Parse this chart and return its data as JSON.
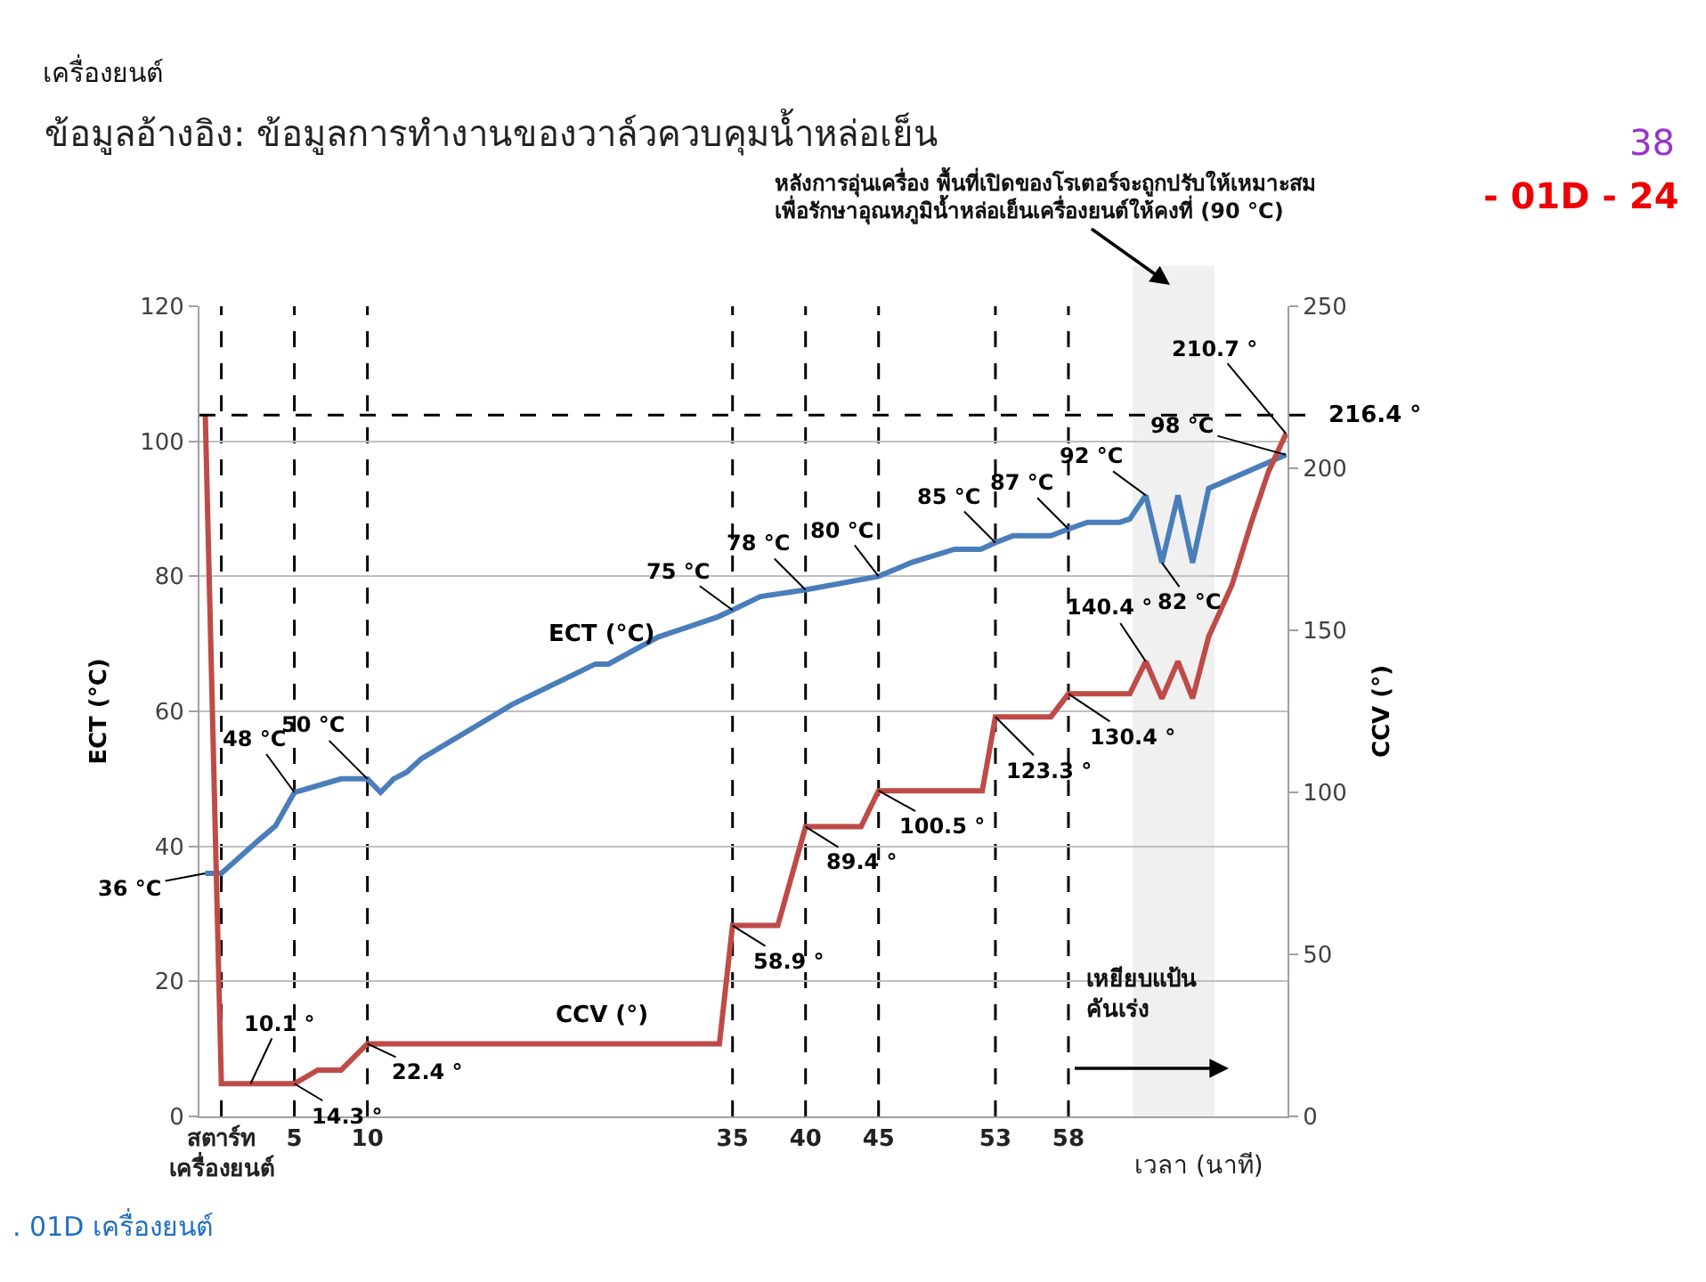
{
  "chart_data": {
    "type": "line",
    "title": "ข้อมูลอ้างอิง: ข้อมูลการทำงานของวาล์วควบคุมน้ำหล่อเย็น",
    "xlabel": "เวลา (นาที)",
    "ylabel": "ECT (°C)",
    "y2label": "CCV (°)",
    "series": [
      {
        "name": "ECT (°C)",
        "color": "#4a7ebb",
        "x": [
          -1.1,
          0,
          2.6,
          3.7,
          5,
          8.2,
          10,
          10.9,
          11.8,
          12.7,
          13.7,
          19.9,
          25.6,
          26.5,
          29.9,
          34,
          35,
          36.9,
          40,
          45,
          47.2,
          50.2,
          52,
          53,
          54.2,
          56.8,
          58,
          59.3,
          61.5,
          62.2,
          63.3,
          64.4,
          65.5,
          66.5,
          67.6,
          72.9
        ],
        "values": [
          36,
          36,
          41,
          43,
          48,
          50,
          50,
          48,
          50,
          51,
          53,
          61,
          67,
          67,
          71,
          74,
          75,
          77,
          78,
          80,
          82,
          84,
          84,
          85,
          86,
          86,
          87,
          88,
          88,
          88.5,
          92,
          82,
          92,
          82,
          93,
          98
        ]
      },
      {
        "name": "CCV (°)",
        "color": "#be4b48",
        "axis": "y2",
        "x": [
          -1.1,
          0,
          2,
          5,
          6.6,
          8.2,
          10,
          34.1,
          35,
          38.1,
          40,
          43.8,
          45,
          52.1,
          53,
          56.8,
          58,
          62.2,
          63.3,
          64.4,
          65.5,
          66.5,
          67.6,
          69.2,
          70.5,
          71.7,
          72.9
        ],
        "values": [
          216.4,
          10.1,
          10.1,
          10.1,
          14.3,
          14.3,
          22.4,
          22.4,
          58.9,
          58.9,
          89.4,
          89.4,
          100.5,
          100.5,
          123.3,
          123.3,
          130.4,
          130.4,
          140.4,
          129,
          140.4,
          129,
          148,
          164,
          183,
          199,
          210.7
        ]
      }
    ],
    "xlim": [
      -1.5,
      73
    ],
    "xticks": [
      {
        "value": 0,
        "label": "สตาร์ท\nเครื่องยนต์"
      },
      5,
      10,
      35,
      40,
      45,
      53,
      58
    ],
    "ylim": [
      0,
      120
    ],
    "yticks": [
      0,
      20,
      40,
      60,
      80,
      100,
      120
    ],
    "y2lim": [
      0,
      250
    ],
    "y2ticks": [
      0,
      50,
      100,
      150,
      200,
      250
    ],
    "grid": "y",
    "legend": false,
    "line_style": "solid",
    "ref_lines": [
      {
        "axis": "y2",
        "value": 216.4,
        "label": "216.4 °",
        "color": "#000000",
        "line_style": "dashed"
      },
      {
        "axis": "x",
        "value": 0,
        "color": "#000000",
        "line_style": "dashed"
      },
      {
        "axis": "x",
        "value": 5,
        "color": "#000000",
        "line_style": "dashed"
      },
      {
        "axis": "x",
        "value": 10,
        "color": "#000000",
        "line_style": "dashed"
      },
      {
        "axis": "x",
        "value": 35,
        "color": "#000000",
        "line_style": "dashed"
      },
      {
        "axis": "x",
        "value": 40,
        "color": "#000000",
        "line_style": "dashed"
      },
      {
        "axis": "x",
        "value": 45,
        "color": "#000000",
        "line_style": "dashed"
      },
      {
        "axis": "x",
        "value": 53,
        "color": "#000000",
        "line_style": "dashed"
      },
      {
        "axis": "x",
        "value": 58,
        "color": "#000000",
        "line_style": "dashed"
      }
    ],
    "bands": [
      {
        "axis": "x",
        "from": 62.4,
        "to": 68,
        "color": "#f0f0f0"
      }
    ],
    "annotations": [
      "เครื่องยนต์",
      "38",
      "- 01D - 24",
      "หลังการอุ่นเครื่อง พื้นที่เปิดของโรเตอร์จะถูกปรับให้เหมาะสม\nเพื่อรักษาอุณหภูมิน้ำหล่อเย็นเครื่องยนต์ให้คงที่ (90 °C)",
      "เหยียบแป้น\nคันเร่ง",
      ". 01D เครื่องยนต์",
      {
        "text": "36 °C",
        "x": -1.1,
        "y": 36
      },
      {
        "text": "48 °C",
        "x": 5,
        "y": 48
      },
      {
        "text": "50 °C",
        "x": 10,
        "y": 50
      },
      {
        "text": "75 °C",
        "x": 35,
        "y": 75
      },
      {
        "text": "78 °C",
        "x": 40,
        "y": 78
      },
      {
        "text": "80 °C",
        "x": 45,
        "y": 80
      },
      {
        "text": "85 °C",
        "x": 53,
        "y": 85
      },
      {
        "text": "87 °C",
        "x": 58,
        "y": 87
      },
      {
        "text": "92 °C",
        "x": 63.3,
        "y": 92
      },
      {
        "text": "82 °C",
        "x": 64.4,
        "y": 82
      },
      {
        "text": "98 °C",
        "x": 72.9,
        "y": 98
      },
      {
        "text": "10.1 °",
        "x": 2
      },
      {
        "text": "14.3 °",
        "x": 5
      },
      {
        "text": "22.4 °",
        "x": 10
      },
      {
        "text": "58.9 °",
        "x": 35
      },
      {
        "text": "89.4 °",
        "x": 40
      },
      {
        "text": "100.5 °",
        "x": 45
      },
      {
        "text": "123.3 °",
        "x": 53
      },
      {
        "text": "130.4 °",
        "x": 58
      },
      {
        "text": "140.4 °",
        "x": 63.3
      },
      {
        "text": "210.7 °",
        "x": 72.9
      }
    ]
  }
}
